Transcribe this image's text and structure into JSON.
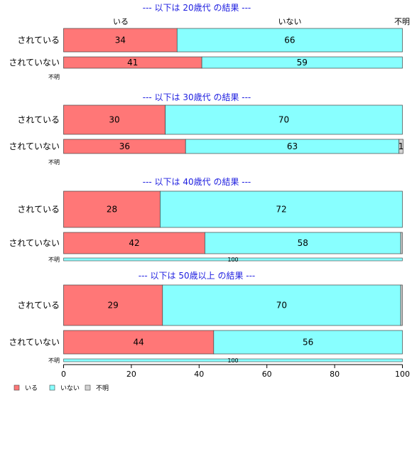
{
  "chart_data": {
    "type": "bar",
    "orientation": "horizontal-stacked-percent",
    "categories_legend": [
      "いる",
      "いない",
      "不明"
    ],
    "colors": {
      "いる": "#ff7777",
      "いない": "#88ffff",
      "不明": "#d3d3d3"
    },
    "column_headers": [
      "いる",
      "いない",
      "不明"
    ],
    "xlim": [
      0,
      100
    ],
    "xticks": [
      0,
      20,
      40,
      60,
      80,
      100
    ],
    "panels": [
      {
        "title": "--- 以下は 20歳代 の結果 ---",
        "rows": [
          {
            "label": "されている",
            "values": [
              33.5,
              66.5,
              0
            ],
            "labels": [
              "34",
              "66",
              ""
            ]
          },
          {
            "label": "されていない",
            "values": [
              40.8,
              59.2,
              0
            ],
            "labels": [
              "41",
              "59",
              ""
            ]
          }
        ],
        "unknown_row": {
          "label": "不明",
          "values": [
            0,
            0,
            0
          ],
          "labels": [
            ""
          ]
        }
      },
      {
        "title": "--- 以下は 30歳代 の結果 ---",
        "rows": [
          {
            "label": "されている",
            "values": [
              30,
              70,
              0
            ],
            "labels": [
              "30",
              "70",
              ""
            ]
          },
          {
            "label": "されていない",
            "values": [
              36,
              63,
              1.2
            ],
            "labels": [
              "36",
              "63",
              "1"
            ]
          }
        ],
        "unknown_row": {
          "label": "不明",
          "values": [
            0,
            0,
            0
          ],
          "labels": [
            ""
          ]
        }
      },
      {
        "title": "--- 以下は 40歳代 の結果 ---",
        "rows": [
          {
            "label": "されている",
            "values": [
              28.5,
              71.5,
              0
            ],
            "labels": [
              "28",
              "72",
              ""
            ]
          },
          {
            "label": "されていない",
            "values": [
              41.7,
              57.8,
              0.5
            ],
            "labels": [
              "42",
              "58",
              ""
            ]
          }
        ],
        "unknown_row": {
          "label": "不明",
          "values": [
            0,
            100,
            0
          ],
          "labels": [
            "100"
          ]
        }
      },
      {
        "title": "--- 以下は 50歳以上 の結果 ---",
        "rows": [
          {
            "label": "されている",
            "values": [
              29.2,
              70.3,
              0.5
            ],
            "labels": [
              "29",
              "70",
              ""
            ]
          },
          {
            "label": "されていない",
            "values": [
              44.3,
              55.7,
              0
            ],
            "labels": [
              "44",
              "56",
              ""
            ]
          }
        ],
        "unknown_row": {
          "label": "不明",
          "values": [
            0,
            100,
            0
          ],
          "labels": [
            "100"
          ]
        }
      }
    ]
  }
}
